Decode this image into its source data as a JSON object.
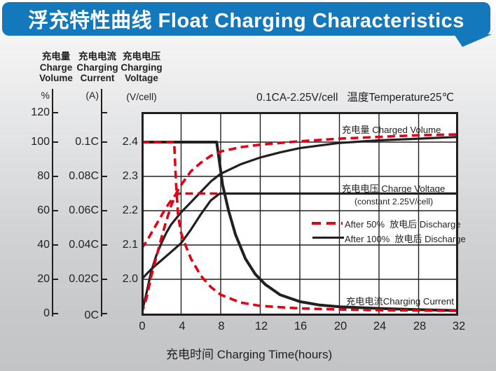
{
  "header": {
    "title": "浮充特性曲线 Float Charging Characteristics"
  },
  "colors": {
    "banner_blue": "#1478bd",
    "curve_red": "#e30014",
    "curve_black": "#231f20",
    "plot_bg": "#ffffff"
  },
  "axes": {
    "volume": {
      "title_lines": [
        "充电量",
        "Charge",
        "Volume"
      ],
      "unit": "%",
      "ticks": [
        "120",
        "100",
        "80",
        "60",
        "40",
        "20",
        "0"
      ]
    },
    "current": {
      "title_lines": [
        "充电电流",
        "Charging",
        "Current"
      ],
      "unit": "(A)",
      "ticks": [
        "0.1C",
        "0.08C",
        "0.06C",
        "0.04C",
        "0.02C",
        "0C"
      ]
    },
    "voltage": {
      "title_lines": [
        "充电电压",
        "Charging",
        "Voltage"
      ],
      "unit": "(V/cell)",
      "ticks": [
        "2.4",
        "2.3",
        "2.2",
        "2.1",
        "2.0"
      ]
    }
  },
  "chart_data": {
    "type": "line",
    "title": "浮充特性曲线 Float Charging Characteristics",
    "condition_note": "0.1CA-2.25V/cell   温度Temperature25℃",
    "xlabel": "充电时间 Charging Time(hours)",
    "xlim": [
      0,
      32
    ],
    "x_ticks": [
      0,
      4,
      8,
      12,
      16,
      20,
      24,
      28,
      32
    ],
    "grid": true,
    "grid_voltage_levels": [
      2.4,
      2.3,
      2.2,
      2.1,
      2.0
    ],
    "y_axes": [
      {
        "id": "volume_percent",
        "label": "充电量 Charge Volume",
        "unit": "%",
        "range": [
          0,
          120
        ],
        "ticks": [
          120,
          100,
          80,
          60,
          40,
          20,
          0
        ]
      },
      {
        "id": "current_c",
        "label": "充电电流 Charging Current",
        "unit": "(A)",
        "range": [
          0,
          0.12
        ],
        "ticks": [
          0.1,
          0.08,
          0.06,
          0.04,
          0.02,
          0
        ]
      },
      {
        "id": "voltage_v",
        "label": "充电电压 Charging Voltage",
        "unit": "V/cell",
        "range": [
          1.95,
          2.45
        ],
        "ticks": [
          2.4,
          2.3,
          2.2,
          2.1,
          2.0
        ]
      }
    ],
    "annotations": {
      "charged_volume": "充电量 Charged Volume",
      "charge_voltage": "充电电压 Charge Voltage",
      "charge_voltage_sub": "(constant 2.25V/cell)",
      "charging_current": "充电电流Charging Current"
    },
    "legend": [
      {
        "label": "After 50%  放电后 Discharge",
        "style": "dashed",
        "color": "#e30014"
      },
      {
        "label": "After 100%  放电后 Discharge",
        "style": "solid",
        "color": "#231f20"
      }
    ],
    "series": [
      {
        "name": "charged-volume-after-100pct-discharge",
        "axis": "volume_percent",
        "style": "solid",
        "color": "#231f20",
        "points": [
          [
            0,
            0
          ],
          [
            0.5,
            12
          ],
          [
            1,
            25
          ],
          [
            1.5,
            34
          ],
          [
            2,
            41
          ],
          [
            2.5,
            47
          ],
          [
            3,
            52
          ],
          [
            4,
            59
          ],
          [
            5,
            65
          ],
          [
            6,
            71
          ],
          [
            7,
            77
          ],
          [
            8,
            81.5
          ],
          [
            10,
            87
          ],
          [
            12,
            91
          ],
          [
            14,
            94
          ],
          [
            16,
            96.5
          ],
          [
            20,
            99.5
          ],
          [
            24,
            101
          ],
          [
            28,
            102
          ],
          [
            32,
            103
          ]
        ]
      },
      {
        "name": "charge-voltage-after-100pct-discharge",
        "axis": "voltage_v",
        "style": "solid",
        "color": "#231f20",
        "points": [
          [
            0,
            2.0
          ],
          [
            1,
            2.03
          ],
          [
            2,
            2.055
          ],
          [
            3,
            2.08
          ],
          [
            4,
            2.105
          ],
          [
            5,
            2.145
          ],
          [
            6,
            2.19
          ],
          [
            7,
            2.23
          ],
          [
            7.9,
            2.25
          ],
          [
            32,
            2.25
          ]
        ]
      },
      {
        "name": "charging-current-after-100pct-discharge",
        "axis": "current_c",
        "style": "solid",
        "color": "#231f20",
        "points": [
          [
            0,
            0.1
          ],
          [
            7.6,
            0.1
          ],
          [
            8.2,
            0.075
          ],
          [
            8.8,
            0.06
          ],
          [
            9.5,
            0.046
          ],
          [
            10.5,
            0.032
          ],
          [
            11.5,
            0.023
          ],
          [
            12.5,
            0.017
          ],
          [
            14,
            0.011
          ],
          [
            16,
            0.007
          ],
          [
            18,
            0.005
          ],
          [
            20,
            0.004
          ],
          [
            24,
            0.003
          ],
          [
            28,
            0.0023
          ],
          [
            32,
            0.0018
          ]
        ]
      },
      {
        "name": "charged-volume-after-50pct-discharge",
        "axis": "volume_percent",
        "style": "dashed",
        "color": "#e30014",
        "points": [
          [
            0,
            0
          ],
          [
            0.5,
            9
          ],
          [
            1,
            22
          ],
          [
            1.5,
            33
          ],
          [
            2,
            44
          ],
          [
            2.5,
            54
          ],
          [
            3,
            63
          ],
          [
            3.5,
            70
          ],
          [
            4,
            75
          ],
          [
            5,
            83
          ],
          [
            6,
            88
          ],
          [
            7,
            92
          ],
          [
            8,
            94.5
          ],
          [
            10,
            97
          ],
          [
            12,
            98.5
          ],
          [
            16,
            100.5
          ],
          [
            20,
            102
          ],
          [
            24,
            103
          ],
          [
            28,
            104
          ],
          [
            32,
            104.5
          ]
        ]
      },
      {
        "name": "charge-voltage-after-50pct-discharge",
        "axis": "voltage_v",
        "style": "dashed",
        "color": "#e30014",
        "points": [
          [
            0,
            2.09
          ],
          [
            0.5,
            2.11
          ],
          [
            1,
            2.135
          ],
          [
            1.5,
            2.16
          ],
          [
            2,
            2.185
          ],
          [
            2.5,
            2.21
          ],
          [
            3,
            2.23
          ],
          [
            3.4,
            2.245
          ],
          [
            3.8,
            2.25
          ],
          [
            8,
            2.25
          ]
        ]
      },
      {
        "name": "charging-current-after-50pct-discharge",
        "axis": "current_c",
        "style": "dashed",
        "color": "#e30014",
        "points": [
          [
            0,
            0.1
          ],
          [
            3.3,
            0.1
          ],
          [
            3.5,
            0.075
          ],
          [
            3.7,
            0.057
          ],
          [
            4,
            0.047
          ],
          [
            4.5,
            0.039
          ],
          [
            5,
            0.032
          ],
          [
            6,
            0.022
          ],
          [
            7,
            0.0155
          ],
          [
            8,
            0.011
          ],
          [
            10,
            0.0065
          ],
          [
            12,
            0.0045
          ],
          [
            16,
            0.003
          ],
          [
            20,
            0.0024
          ],
          [
            24,
            0.002
          ],
          [
            28,
            0.0018
          ],
          [
            32,
            0.0016
          ]
        ]
      }
    ]
  }
}
